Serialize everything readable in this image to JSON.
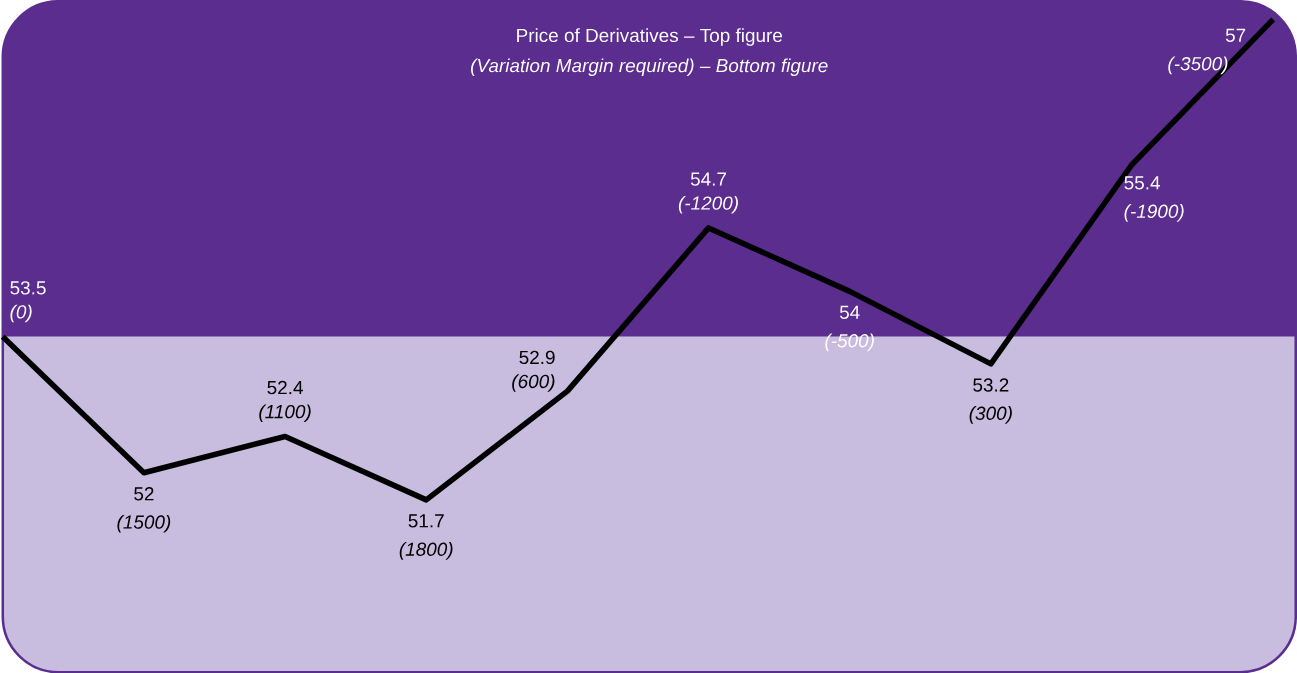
{
  "chart_data": {
    "type": "line",
    "title": "Price of Derivatives – Top figure",
    "subtitle": "(Variation Margin required) – Bottom figure",
    "categories": [
      null,
      null,
      null,
      null,
      null,
      null,
      null,
      null,
      null,
      null
    ],
    "series": [
      {
        "color": "#000000",
        "values": [
          53.5,
          52,
          52.4,
          51.7,
          52.9,
          54.7,
          54,
          53.2,
          55.4,
          57
        ],
        "value_labels": [
          "53.5",
          "52",
          "52.4",
          "51.7",
          "52.9",
          "54.7",
          "54",
          "53.2",
          "55.4",
          "57"
        ]
      }
    ],
    "annotations": [
      "(0)",
      "(1500)",
      "(1100)",
      "(1800)",
      "(600)",
      "(-1200)",
      "(-500)",
      "(300)",
      "(-1900)",
      "(-3500)"
    ],
    "ylim": [
      49.8,
      57.2
    ],
    "bands": [
      {
        "axis": "y",
        "from": 53.5,
        "to": 57.2,
        "color": "#5b2d8e"
      },
      {
        "axis": "y",
        "from": 49.8,
        "to": 53.5,
        "color": "#c8bcdf"
      }
    ],
    "marker": "none",
    "line_style": "solid"
  }
}
